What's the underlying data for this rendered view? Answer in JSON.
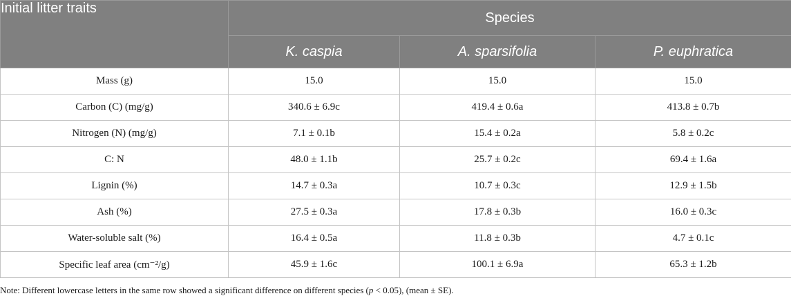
{
  "table": {
    "header_traits": "Initial litter traits",
    "header_species": "Species",
    "species": [
      "K. caspia",
      "A. sparsifolia",
      "P. euphratica"
    ],
    "rows": [
      {
        "trait": "Mass (g)",
        "values": [
          "15.0",
          "15.0",
          "15.0"
        ]
      },
      {
        "trait": "Carbon (C) (mg/g)",
        "values": [
          "340.6 ± 6.9c",
          "419.4 ± 0.6a",
          "413.8 ± 0.7b"
        ]
      },
      {
        "trait": "Nitrogen (N) (mg/g)",
        "values": [
          "7.1 ± 0.1b",
          "15.4 ± 0.2a",
          "5.8 ± 0.2c"
        ]
      },
      {
        "trait": "C: N",
        "values": [
          "48.0 ± 1.1b",
          "25.7 ± 0.2c",
          "69.4 ± 1.6a"
        ]
      },
      {
        "trait": "Lignin (%)",
        "values": [
          "14.7 ± 0.3a",
          "10.7 ± 0.3c",
          "12.9 ± 1.5b"
        ]
      },
      {
        "trait": "Ash (%)",
        "values": [
          "27.5 ± 0.3a",
          "17.8 ± 0.3b",
          "16.0 ± 0.3c"
        ]
      },
      {
        "trait": "Water-soluble salt (%)",
        "values": [
          "16.4 ± 0.5a",
          "11.8 ± 0.3b",
          "4.7 ± 0.1c"
        ]
      },
      {
        "trait": "Specific leaf area (cm⁻²/g)",
        "values": [
          "45.9 ± 1.6c",
          "100.1 ± 6.9a",
          "65.3 ± 1.2b"
        ]
      }
    ]
  },
  "note": {
    "before": "Note: Different lowercase letters in the same row showed a significant difference on different species (",
    "p": "p",
    "after": " < 0.05), (mean ± SE)."
  },
  "colors": {
    "header_bg": "#808080",
    "header_text": "#ffffff",
    "grid": "#c4c4c4"
  }
}
